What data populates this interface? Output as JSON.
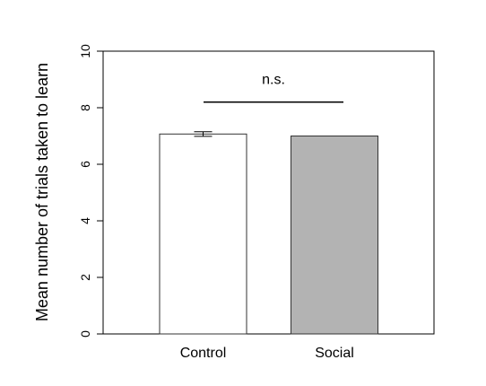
{
  "chart_data": {
    "type": "bar",
    "title": "",
    "xlabel": "",
    "ylabel": "Mean number of trials taken to learn",
    "categories": [
      "Control",
      "Social"
    ],
    "values": [
      7.07,
      7.0
    ],
    "error": [
      0.08,
      0.0
    ],
    "bar_colors": [
      "#ffffff",
      "#b3b3b3"
    ],
    "ylim": [
      0,
      10
    ],
    "yticks": [
      "0",
      "2",
      "4",
      "6",
      "8",
      "10"
    ],
    "grid": false,
    "annotation": {
      "text": "n.s.",
      "bracket_y": 8.2
    }
  }
}
